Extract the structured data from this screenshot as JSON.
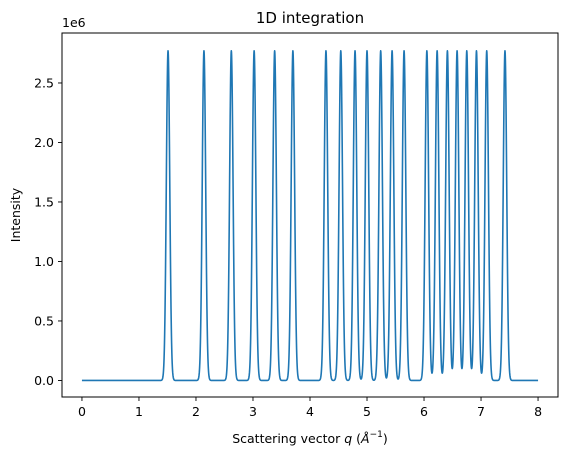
{
  "chart_data": {
    "type": "line",
    "title": "1D integration",
    "xlabel_prefix": "Scattering vector ",
    "xlabel_var": "q",
    "xlabel_unit_open": " (",
    "xlabel_unit_base": "Å",
    "xlabel_unit_exp": "−1",
    "xlabel_unit_close": ")",
    "ylabel": "Intensity",
    "y_offset_text": "1e6",
    "xlim": [
      -0.35,
      8.35
    ],
    "ylim": [
      -0.139,
      2.92
    ],
    "x_ticks": [
      0,
      1,
      2,
      3,
      4,
      5,
      6,
      7,
      8
    ],
    "y_ticks": [
      0.0,
      0.5,
      1.0,
      1.5,
      2.0,
      2.5
    ],
    "y_tick_labels": [
      "0.0",
      "0.5",
      "1.0",
      "1.5",
      "2.0",
      "2.5"
    ],
    "x_range": [
      0,
      8
    ],
    "baseline": 0.0,
    "peak_height": 2.77,
    "peak_positions": [
      1.51,
      2.14,
      2.62,
      3.02,
      3.38,
      3.7,
      4.28,
      4.54,
      4.79,
      5.0,
      5.24,
      5.44,
      5.65,
      6.05,
      6.23,
      6.41,
      6.58,
      6.75,
      6.92,
      7.1,
      7.42
    ],
    "grid": false,
    "line_color": "#1f77b4"
  }
}
